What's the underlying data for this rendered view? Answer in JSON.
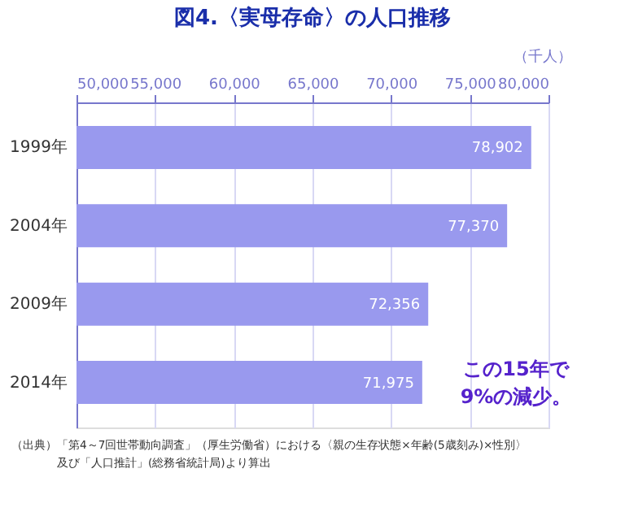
{
  "chart_data": {
    "type": "bar",
    "orientation": "horizontal",
    "title": "図4.〈実母存命〉の人口推移",
    "xlabel": "（千人）",
    "categories": [
      "1999年",
      "2004年",
      "2009年",
      "2014年"
    ],
    "values": [
      78902,
      77370,
      72356,
      71975
    ],
    "color": "#9999ee",
    "data_labels": true,
    "value_labels": [
      "78,902",
      "77,370",
      "72,356",
      "71,975"
    ],
    "xlim": [
      50000,
      80000
    ],
    "xticks": [
      {
        "value": 50000,
        "label": "50,000"
      },
      {
        "value": 55000,
        "label": "55,000"
      },
      {
        "value": 60000,
        "label": "60,000"
      },
      {
        "value": 65000,
        "label": "65,000"
      },
      {
        "value": 70000,
        "label": "70,000"
      },
      {
        "value": 75000,
        "label": "75,000"
      },
      {
        "value": 80000,
        "label": "80,000"
      }
    ],
    "grid": "x",
    "annotations": [
      "この15年で\n9%の減少。",
      "（出典）「第4～7回世帯動向調査」（厚生労働省）における〈親の生存状態×年齢(5歳刻み)×性別〉",
      "及び「人口推計」(総務省統計局)より算出"
    ]
  }
}
